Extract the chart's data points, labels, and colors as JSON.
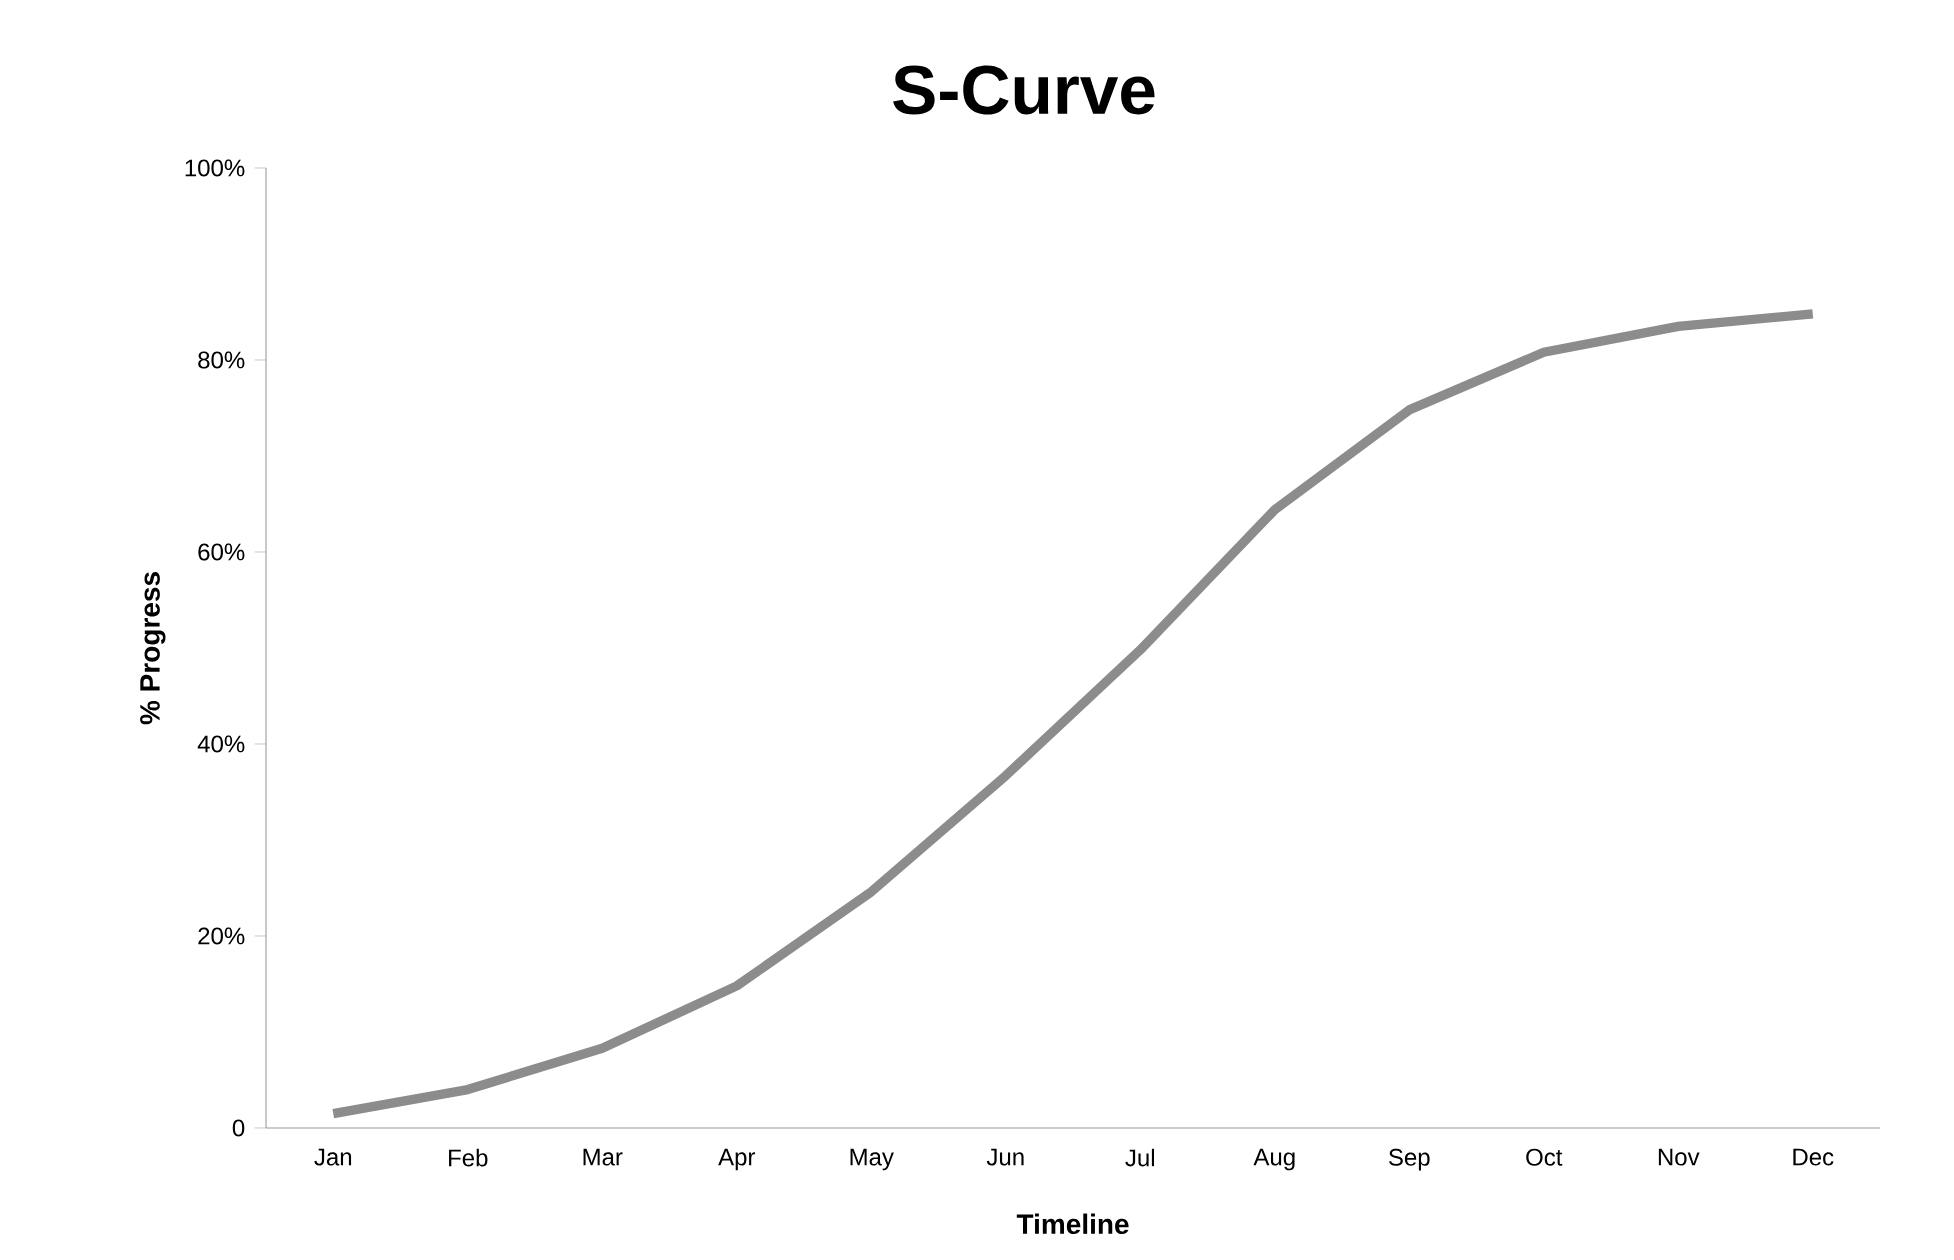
{
  "chart_data": {
    "type": "line",
    "title": "S-Curve",
    "xlabel": "Timeline",
    "ylabel": "% Progress",
    "categories": [
      "Jan",
      "Feb",
      "Mar",
      "Apr",
      "May",
      "Jun",
      "Jul",
      "Aug",
      "Sep",
      "Oct",
      "Nov",
      "Dec"
    ],
    "series": [
      {
        "color": "#8c8c8c",
        "values": [
          1.5,
          4,
          8.3,
          14.8,
          24.6,
          36.7,
          49.8,
          64.4,
          74.8,
          80.8,
          83.5,
          84.8
        ]
      }
    ],
    "ylim": [
      0,
      100
    ],
    "yticks": [
      0,
      {
        "value": 20,
        "label": "20%"
      },
      {
        "value": 40,
        "label": "40%"
      },
      {
        "value": 60,
        "label": "60%"
      },
      {
        "value": 80,
        "label": "80%"
      },
      {
        "value": 100,
        "label": "100%"
      }
    ]
  }
}
